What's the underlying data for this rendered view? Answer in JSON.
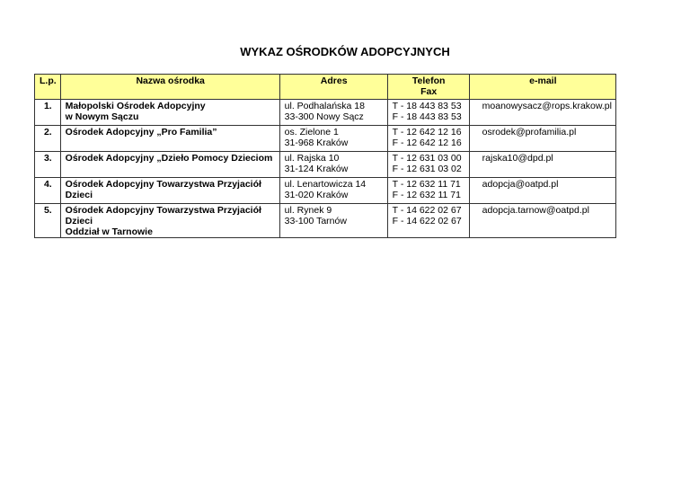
{
  "title": "WYKAZ OŚRODKÓW ADOPCYJNYCH",
  "headers": {
    "lp": "L.p.",
    "name": "Nazwa ośrodka",
    "address": "Adres",
    "phone": "Telefon",
    "fax": "Fax",
    "email": "e-mail"
  },
  "rows": [
    {
      "lp": "1.",
      "name1": "Małopolski Ośrodek Adopcyjny",
      "name2": "w Nowym Sączu",
      "addr1": "ul. Podhalańska 18",
      "addr2": "33-300 Nowy Sącz",
      "tel": "T - 18 443 83 53",
      "fax": "F - 18 443 83 53",
      "email": "moanowysacz@rops.krakow.pl"
    },
    {
      "lp": "2.",
      "name1": "Ośrodek Adopcyjny „Pro Familia”",
      "name2": "",
      "addr1": "os. Zielone 1",
      "addr2": "31-968 Kraków",
      "tel": "T - 12 642 12 16",
      "fax": "F - 12 642 12 16",
      "email": "osrodek@profamilia.pl"
    },
    {
      "lp": "3.",
      "name1": "Ośrodek Adopcyjny „Dzieło Pomocy Dzieciom",
      "name2": "",
      "addr1": "ul. Rajska 10",
      "addr2": "31-124 Kraków",
      "tel": "T - 12 631 03 00",
      "fax": "F - 12 631 03 02",
      "email": "rajska10@dpd.pl"
    },
    {
      "lp": "4.",
      "name1": "Ośrodek Adopcyjny Towarzystwa Przyjaciół Dzieci",
      "name2": "",
      "addr1": "ul. Lenartowicza 14",
      "addr2": "31-020 Kraków",
      "tel": "T - 12 632 11 71",
      "fax": "F - 12 632 11 71",
      "email": "adopcja@oatpd.pl"
    },
    {
      "lp": "5.",
      "name1": "Ośrodek Adopcyjny Towarzystwa Przyjaciół Dzieci",
      "name2": "Oddział w Tarnowie",
      "addr1": "ul. Rynek 9",
      "addr2": "33-100 Tarnów",
      "tel": "T - 14 622 02 67",
      "fax": "F - 14 622 02 67",
      "email": "adopcja.tarnow@oatpd.pl"
    }
  ]
}
